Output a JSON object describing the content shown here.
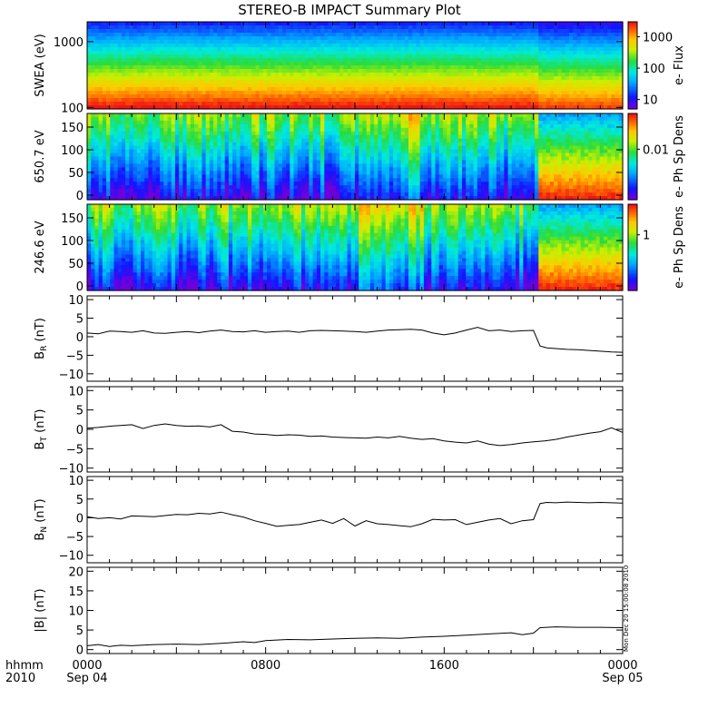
{
  "title": "STEREO-B IMPACT Summary Plot",
  "footer": {
    "hhmm": "hhmm",
    "year": "2010"
  },
  "timestamp": "Mon Dec 20 15:00:08 2010",
  "time_axis": {
    "range_hours": [
      0,
      24
    ],
    "ticks": [
      {
        "hour": 0,
        "line1": "0000",
        "line2": "Sep 04"
      },
      {
        "hour": 8,
        "line1": "0800",
        "line2": ""
      },
      {
        "hour": 16,
        "line1": "1600",
        "line2": ""
      },
      {
        "hour": 24,
        "line1": "0000",
        "line2": "Sep 05"
      }
    ]
  },
  "chart_data": [
    {
      "type": "heatmap",
      "ylabel": "SWEA (eV)",
      "y_log": true,
      "ylim": [
        95,
        2000
      ],
      "yticks": [
        {
          "v": 100,
          "t": "100"
        },
        {
          "v": 1000,
          "t": "1000"
        }
      ],
      "colorbar": {
        "label": "e- Flux",
        "log": true,
        "range": [
          5,
          3000
        ],
        "ticks": [
          {
            "v": 10,
            "t": "10"
          },
          {
            "v": 100,
            "t": "100"
          },
          {
            "v": 1000,
            "t": "1000"
          }
        ]
      }
    },
    {
      "type": "heatmap",
      "ylabel": "650.7 eV",
      "ylim": [
        -10,
        180
      ],
      "yticks": [
        {
          "v": 0,
          "t": "0"
        },
        {
          "v": 50,
          "t": "50"
        },
        {
          "v": 100,
          "t": "100"
        },
        {
          "v": 150,
          "t": "150"
        }
      ],
      "colorbar": {
        "label": "e- Ph Sp Dens",
        "log": true,
        "range": [
          0.0008,
          0.06
        ],
        "ticks": [
          {
            "v": 0.01,
            "t": "0.01"
          }
        ]
      }
    },
    {
      "type": "heatmap",
      "ylabel": "246.6 eV",
      "ylim": [
        -10,
        180
      ],
      "yticks": [
        {
          "v": 0,
          "t": "0"
        },
        {
          "v": 50,
          "t": "50"
        },
        {
          "v": 100,
          "t": "100"
        },
        {
          "v": 150,
          "t": "150"
        }
      ],
      "colorbar": {
        "label": "e- Ph Sp Dens",
        "log": true,
        "range": [
          0.08,
          4
        ],
        "ticks": [
          {
            "v": 1,
            "t": "1"
          }
        ]
      }
    },
    {
      "type": "line",
      "ylabel": "B",
      "ysub": "R",
      "yunit": " (nT)",
      "ylim": [
        -12,
        11
      ],
      "yticks": [
        {
          "v": -10,
          "t": "−10"
        },
        {
          "v": -5,
          "t": "−5"
        },
        {
          "v": 0,
          "t": "0"
        },
        {
          "v": 5,
          "t": "5"
        },
        {
          "v": 10,
          "t": "10"
        }
      ],
      "x": [
        0,
        0.5,
        1,
        1.5,
        2,
        2.5,
        3,
        3.5,
        4,
        4.5,
        5,
        5.5,
        6,
        6.5,
        7,
        7.5,
        8,
        8.5,
        9,
        9.5,
        10,
        10.5,
        11,
        11.5,
        12,
        12.5,
        13,
        13.5,
        14,
        14.5,
        15,
        15.5,
        16,
        16.5,
        17,
        17.5,
        18,
        18.5,
        19,
        19.5,
        20,
        20.3,
        20.6,
        21,
        21.5,
        22,
        22.5,
        23,
        23.5,
        24
      ],
      "y": [
        1,
        0.8,
        1.5,
        1.4,
        1.2,
        1.6,
        1.0,
        0.9,
        1.2,
        1.4,
        1.1,
        1.5,
        1.8,
        1.4,
        1.3,
        1.6,
        1.2,
        1.4,
        1.5,
        1.2,
        1.6,
        1.7,
        1.6,
        1.5,
        1.4,
        1.2,
        1.5,
        1.8,
        1.9,
        2.0,
        1.8,
        1.0,
        0.5,
        1.0,
        1.8,
        2.5,
        1.6,
        1.8,
        1.4,
        1.6,
        1.7,
        -2.5,
        -3.0,
        -3.2,
        -3.4,
        -3.5,
        -3.7,
        -3.9,
        -4.1,
        -4.2
      ]
    },
    {
      "type": "line",
      "ylabel": "B",
      "ysub": "T",
      "yunit": " (nT)",
      "ylim": [
        -11,
        11
      ],
      "yticks": [
        {
          "v": -10,
          "t": "−10"
        },
        {
          "v": -5,
          "t": "−5"
        },
        {
          "v": 0,
          "t": "0"
        },
        {
          "v": 5,
          "t": "5"
        },
        {
          "v": 10,
          "t": "10"
        }
      ],
      "x": [
        0,
        0.5,
        1,
        1.5,
        2,
        2.5,
        3,
        3.5,
        4,
        4.5,
        5,
        5.5,
        6,
        6.5,
        7,
        7.5,
        8,
        8.5,
        9,
        9.5,
        10,
        10.5,
        11,
        11.5,
        12,
        12.5,
        13,
        13.5,
        14,
        14.5,
        15,
        15.5,
        16,
        16.5,
        17,
        17.5,
        18,
        18.5,
        19,
        19.5,
        20,
        20.5,
        21,
        21.5,
        22,
        22.5,
        23,
        23.5,
        24
      ],
      "y": [
        0.3,
        0.5,
        0.8,
        1.0,
        1.2,
        0.2,
        1.0,
        1.4,
        1.0,
        0.8,
        0.9,
        0.6,
        1.2,
        -0.5,
        -0.7,
        -1.2,
        -1.3,
        -1.6,
        -1.4,
        -1.5,
        -1.8,
        -1.7,
        -2.0,
        -2.1,
        -2.2,
        -2.3,
        -2.0,
        -2.2,
        -1.8,
        -2.3,
        -2.6,
        -2.4,
        -3.0,
        -3.3,
        -3.5,
        -3.0,
        -3.8,
        -4.2,
        -3.9,
        -3.5,
        -3.2,
        -3.0,
        -2.6,
        -2.0,
        -1.5,
        -1.0,
        -0.6,
        0.4,
        -0.8
      ]
    },
    {
      "type": "line",
      "ylabel": "B",
      "ysub": "N",
      "yunit": " (nT)",
      "ylim": [
        -12,
        11
      ],
      "yticks": [
        {
          "v": -10,
          "t": "−10"
        },
        {
          "v": -5,
          "t": "−5"
        },
        {
          "v": 0,
          "t": "0"
        },
        {
          "v": 5,
          "t": "5"
        },
        {
          "v": 10,
          "t": "10"
        }
      ],
      "x": [
        0,
        0.5,
        1,
        1.5,
        2,
        2.5,
        3,
        3.5,
        4,
        4.5,
        5,
        5.5,
        6,
        6.5,
        7,
        7.5,
        8,
        8.5,
        9,
        9.5,
        10,
        10.5,
        11,
        11.5,
        12,
        12.5,
        13,
        13.5,
        14,
        14.5,
        15,
        15.5,
        16,
        16.5,
        17,
        17.5,
        18,
        18.5,
        19,
        19.5,
        20,
        20.3,
        20.6,
        21,
        21.5,
        22,
        22.5,
        23,
        23.5,
        24
      ],
      "y": [
        0.3,
        -0.2,
        0,
        -0.3,
        0.5,
        0.4,
        0.3,
        0.6,
        0.9,
        0.8,
        1.2,
        1.0,
        1.5,
        0.8,
        0.2,
        -0.8,
        -1.5,
        -2.3,
        -2.0,
        -1.8,
        -1.2,
        -0.6,
        -1.5,
        -0.2,
        -2.2,
        -0.8,
        -1.6,
        -1.8,
        -2.1,
        -2.4,
        -1.6,
        -0.4,
        -0.6,
        -0.5,
        -1.8,
        -1.2,
        -0.6,
        -0.2,
        -1.6,
        -0.8,
        -0.5,
        3.8,
        4.1,
        4.0,
        4.2,
        4.1,
        4.0,
        4.1,
        4.0,
        3.9
      ]
    },
    {
      "type": "line",
      "ylabel": "|B| (nT)",
      "ylim": [
        -1,
        21
      ],
      "yticks": [
        {
          "v": 0,
          "t": "0"
        },
        {
          "v": 5,
          "t": "5"
        },
        {
          "v": 10,
          "t": "10"
        },
        {
          "v": 15,
          "t": "15"
        },
        {
          "v": 20,
          "t": "20"
        }
      ],
      "x": [
        0,
        0.5,
        1,
        1.5,
        2,
        3,
        4,
        5,
        6,
        7,
        7.5,
        8,
        9,
        10,
        11,
        12,
        13,
        14,
        15,
        16,
        17,
        18,
        19,
        19.5,
        20,
        20.3,
        20.6,
        21,
        22,
        23,
        24
      ],
      "y": [
        1.0,
        1.3,
        0.8,
        1.1,
        1.0,
        1.3,
        1.4,
        1.3,
        1.6,
        2.0,
        1.8,
        2.3,
        2.6,
        2.5,
        2.7,
        2.9,
        3.0,
        2.9,
        3.2,
        3.4,
        3.7,
        4.0,
        4.3,
        3.8,
        4.2,
        5.6,
        5.7,
        5.8,
        5.7,
        5.7,
        5.6
      ]
    }
  ]
}
